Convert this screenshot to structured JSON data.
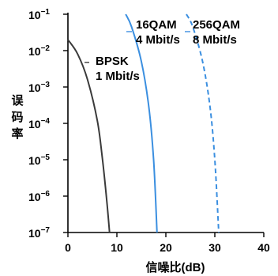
{
  "chart_data": {
    "type": "line",
    "title": "",
    "xlabel": "信噪比(dB)",
    "ylabel": "误码率",
    "xlim": [
      0,
      40
    ],
    "ylim_exp": [
      -7,
      -1
    ],
    "yscale": "log",
    "grid": false,
    "legend": "none",
    "x_ticks": [
      "0",
      "10",
      "20",
      "30",
      "40"
    ],
    "y_ticks": [
      {
        "base": "10",
        "exp": "−7"
      },
      {
        "base": "10",
        "exp": "−6"
      },
      {
        "base": "10",
        "exp": "−5"
      },
      {
        "base": "10",
        "exp": "−4"
      },
      {
        "base": "10",
        "exp": "−3"
      },
      {
        "base": "10",
        "exp": "−2"
      },
      {
        "base": "10",
        "exp": "−1"
      }
    ],
    "series": [
      {
        "name": "BPSK",
        "label_lines": [
          "BPSK",
          "1 Mbit/s"
        ],
        "color": "#3a3a3a",
        "dash": false,
        "points": [
          [
            0,
            0.02
          ],
          [
            2,
            0.008
          ],
          [
            4,
            0.0016
          ],
          [
            6,
            0.00012
          ],
          [
            7,
            1.2e-05
          ],
          [
            8,
            6e-07
          ],
          [
            8.5,
            1e-07
          ]
        ]
      },
      {
        "name": "16QAM",
        "label_lines": [
          "16QAM",
          "4 Mbit/s"
        ],
        "color": "#3b8fe0",
        "dash": false,
        "points": [
          [
            11.8,
            0.1
          ],
          [
            13,
            0.045
          ],
          [
            15,
            0.005
          ],
          [
            16.5,
            0.0003
          ],
          [
            17.5,
            1e-05
          ],
          [
            18.2,
            1e-07
          ]
        ]
      },
      {
        "name": "256QAM",
        "label_lines": [
          "256QAM",
          "8 Mbit/s"
        ],
        "color": "#3b8fe0",
        "dash": true,
        "points": [
          [
            24.2,
            0.1
          ],
          [
            25.5,
            0.045
          ],
          [
            27.5,
            0.005
          ],
          [
            29,
            0.0003
          ],
          [
            30,
            1e-05
          ],
          [
            30.8,
            1e-07
          ]
        ]
      }
    ]
  }
}
